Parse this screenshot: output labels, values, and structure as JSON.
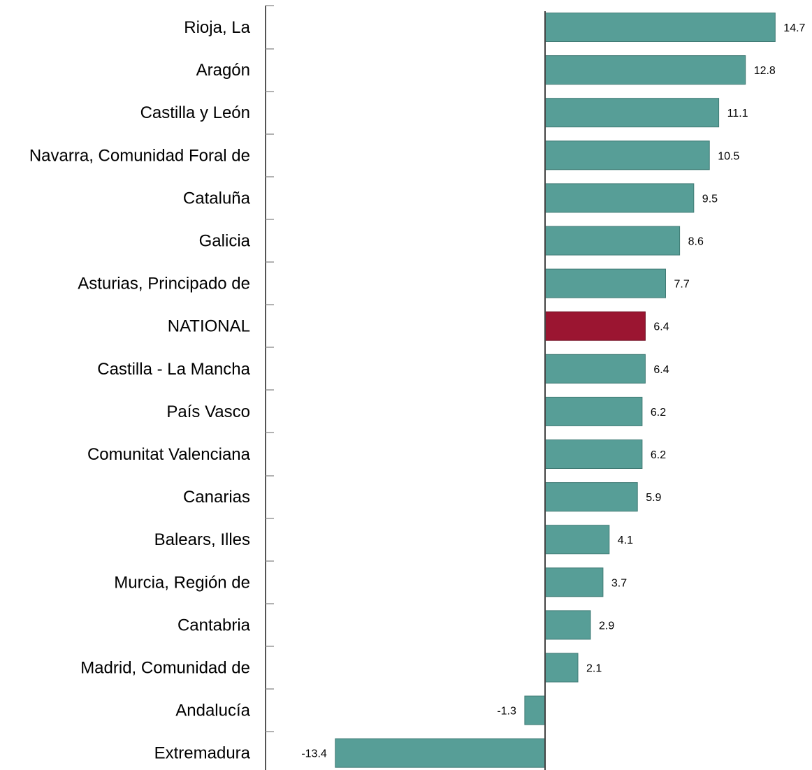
{
  "chart_data": {
    "type": "bar",
    "orientation": "horizontal",
    "categories": [
      "Rioja, La",
      "Aragón",
      "Castilla y León",
      "Navarra, Comunidad Foral de",
      "Cataluña",
      "Galicia",
      "Asturias, Principado de",
      "NATIONAL",
      "Castilla - La Mancha",
      "País Vasco",
      "Comunitat Valenciana",
      "Canarias",
      "Balears, Illes",
      "Murcia, Región de",
      "Cantabria",
      "Madrid, Comunidad de",
      "Andalucía",
      "Extremadura"
    ],
    "values": [
      14.7,
      12.8,
      11.1,
      10.5,
      9.5,
      8.6,
      7.7,
      6.4,
      6.4,
      6.2,
      6.2,
      5.9,
      4.1,
      3.7,
      2.9,
      2.1,
      -1.3,
      -13.4
    ],
    "value_labels": [
      "14.7",
      "12.8",
      "11.1",
      "10.5",
      "9.5",
      "8.6",
      "7.7",
      "6.4",
      "6.4",
      "6.2",
      "6.2",
      "5.9",
      "4.1",
      "3.7",
      "2.9",
      "2.1",
      "-1.3",
      "-13.4"
    ],
    "highlight_category": "NATIONAL",
    "colors": {
      "bar": "#579e97",
      "highlight": "#9b1531",
      "axis": "#555555"
    },
    "xlim": [
      -13.4,
      14.7
    ],
    "grid": false,
    "legend": "none"
  }
}
